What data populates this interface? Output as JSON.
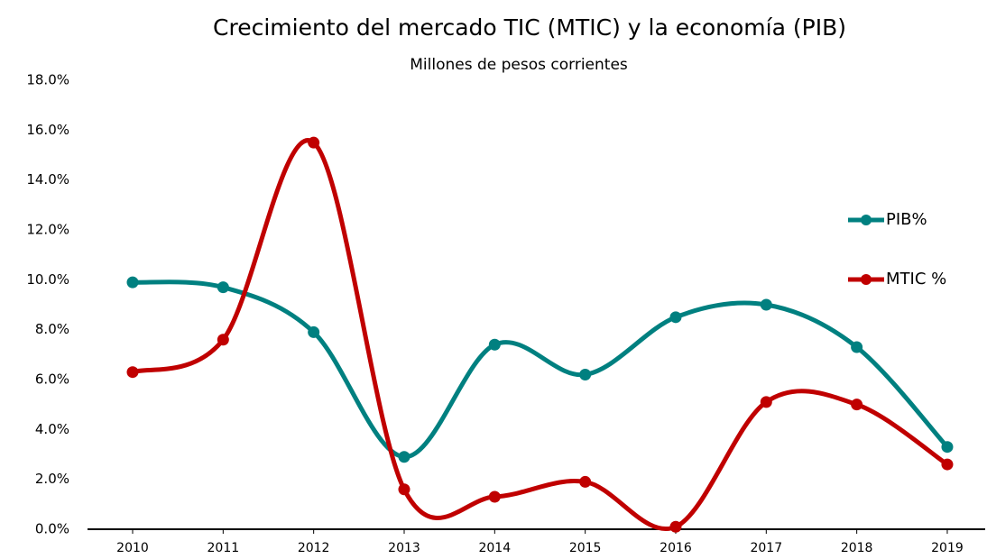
{
  "chart_data": {
    "type": "line",
    "title": "Crecimiento del mercado TIC (MTIC) y la economía (PIB)",
    "subtitle": "Millones de pesos corrientes",
    "categories": [
      "2010",
      "2011",
      "2012",
      "2013",
      "2014",
      "2015",
      "2016",
      "2017",
      "2018",
      "2019"
    ],
    "series": [
      {
        "name": "PIB%",
        "color": "#008080",
        "values": [
          9.9,
          9.7,
          7.9,
          2.9,
          7.4,
          6.2,
          8.5,
          9.0,
          7.3,
          3.3
        ]
      },
      {
        "name": "MTIC %",
        "color": "#c00000",
        "values": [
          6.3,
          7.6,
          15.5,
          1.6,
          1.3,
          1.9,
          0.1,
          5.1,
          5.0,
          2.6
        ]
      }
    ],
    "ylim": [
      0,
      18
    ],
    "yticks": [
      {
        "value": 0,
        "label": "0.0%"
      },
      {
        "value": 2,
        "label": "2.0%"
      },
      {
        "value": 4,
        "label": "4.0%"
      },
      {
        "value": 6,
        "label": "6.0%"
      },
      {
        "value": 8,
        "label": "8.0%"
      },
      {
        "value": 10,
        "label": "10.0%"
      },
      {
        "value": 12,
        "label": "12.0%"
      },
      {
        "value": 14,
        "label": "14.0%"
      },
      {
        "value": 16,
        "label": "16.0%"
      },
      {
        "value": 18,
        "label": "18.0%"
      }
    ],
    "smooth": true,
    "grid": false,
    "legend": "right"
  }
}
